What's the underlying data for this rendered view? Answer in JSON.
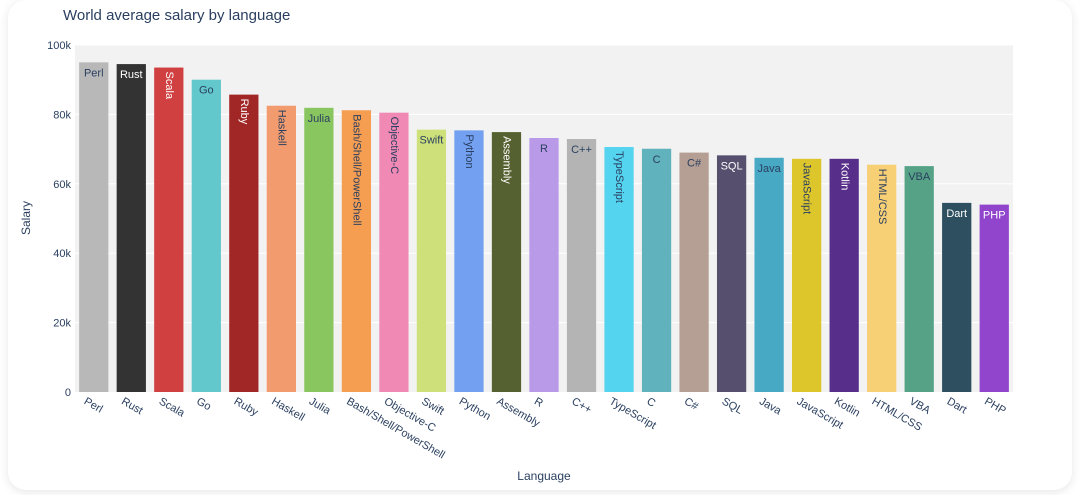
{
  "chart_data": {
    "type": "bar",
    "title": "World average salary by language",
    "xlabel": "Language",
    "ylabel": "Salary",
    "ylim": [
      0,
      100000
    ],
    "yticks": [
      0,
      20000,
      40000,
      60000,
      80000,
      100000
    ],
    "ytick_labels": [
      "0",
      "20k",
      "40k",
      "60k",
      "80k",
      "100k"
    ],
    "categories": [
      "Perl",
      "Rust",
      "Scala",
      "Go",
      "Ruby",
      "Haskell",
      "Julia",
      "Bash/Shell/PowerShell",
      "Objective-C",
      "Swift",
      "Python",
      "Assembly",
      "R",
      "C++",
      "TypeScript",
      "C",
      "C#",
      "SQL",
      "Java",
      "JavaScript",
      "Kotlin",
      "HTML/CSS",
      "VBA",
      "Dart",
      "PHP"
    ],
    "values": [
      95000,
      94500,
      93500,
      90000,
      85700,
      82500,
      81900,
      81200,
      80500,
      75600,
      75400,
      74900,
      73200,
      72900,
      70600,
      70100,
      69000,
      68200,
      67500,
      67200,
      67200,
      65500,
      65100,
      54500,
      54000
    ],
    "colors": [
      "#b8b8b8",
      "#333333",
      "#d04040",
      "#63c8cc",
      "#a12727",
      "#f29b6e",
      "#8ac660",
      "#f59e52",
      "#f08ab5",
      "#cde07a",
      "#73a0f0",
      "#556130",
      "#b89ae8",
      "#b4b4b4",
      "#55d4f0",
      "#60b2bc",
      "#b59e94",
      "#56506e",
      "#48a9c5",
      "#dcc62b",
      "#572e8a",
      "#f7cf75",
      "#55a286",
      "#2e4f5f",
      "#9045cc"
    ],
    "label_colors": [
      "#2a3f5f",
      "#ffffff",
      "#ffffff",
      "#2a3f5f",
      "#ffffff",
      "#2a3f5f",
      "#2a3f5f",
      "#2a3f5f",
      "#2a3f5f",
      "#2a3f5f",
      "#2a3f5f",
      "#ffffff",
      "#2a3f5f",
      "#2a3f5f",
      "#2a3f5f",
      "#2a3f5f",
      "#2a3f5f",
      "#ffffff",
      "#2a3f5f",
      "#2a3f5f",
      "#ffffff",
      "#2a3f5f",
      "#2a3f5f",
      "#ffffff",
      "#ffffff"
    ],
    "label_rotated": [
      false,
      false,
      true,
      false,
      true,
      true,
      false,
      true,
      true,
      false,
      true,
      true,
      false,
      false,
      true,
      false,
      false,
      false,
      false,
      true,
      true,
      true,
      false,
      false,
      false
    ],
    "grid": true,
    "legend": "none"
  }
}
